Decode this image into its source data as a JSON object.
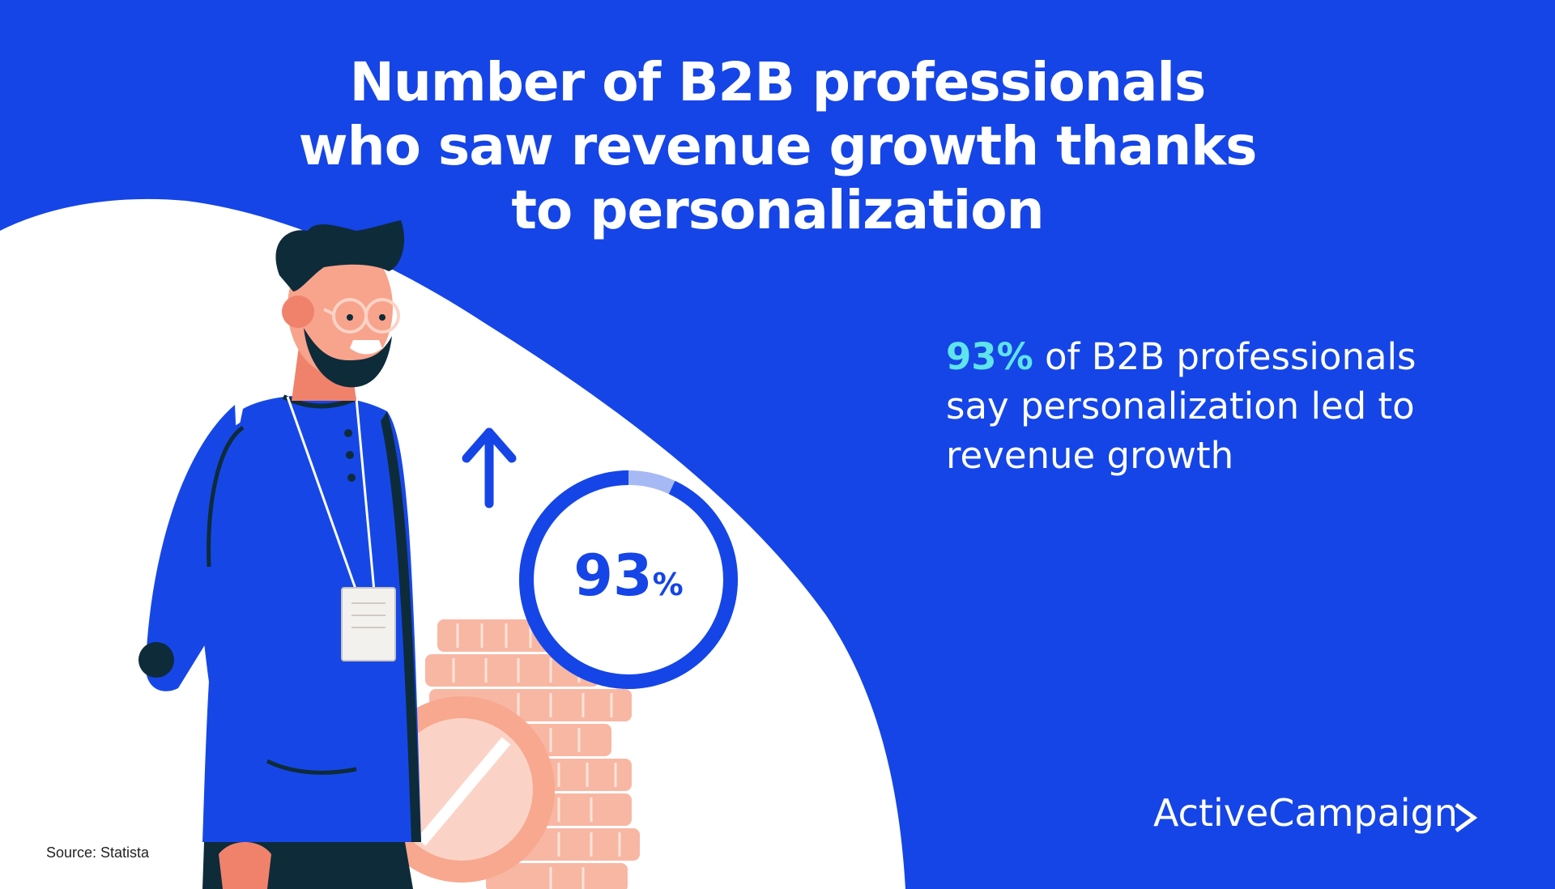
{
  "title": {
    "line1": "Number of B2B professionals",
    "line2": "who saw revenue growth thanks",
    "line3": "to personalization"
  },
  "stat": {
    "highlight": "93%",
    "line1_rest": " of B2B professionals",
    "line2": "say personalization led to",
    "line3": "revenue growth"
  },
  "ring": {
    "value_number": "93",
    "value_unit": "%",
    "fraction": 0.93
  },
  "brand": {
    "name": "ActiveCampaign"
  },
  "source": {
    "text": "Source: Statista"
  },
  "colors": {
    "background_blue": "#1545e6",
    "highlight_cyan": "#5ee4ea",
    "ring_track": "#a7b9f5",
    "coin_peach": "#f7a88f"
  },
  "icons": [
    "arrow-up-icon",
    "chevron-right-icon"
  ]
}
